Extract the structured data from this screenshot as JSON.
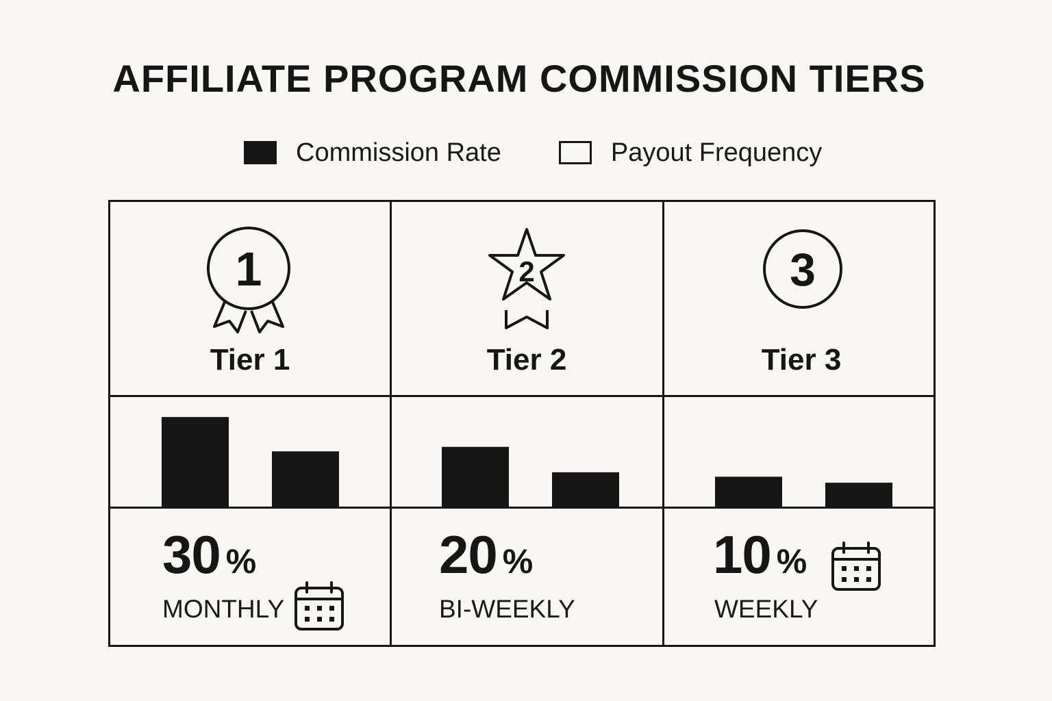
{
  "title": "AFFILIATE PROGRAM COMMISSION TIERS",
  "legend": {
    "filled_label": "Commission Rate",
    "outline_label": "Payout Frequency"
  },
  "colors": {
    "ink": "#161616",
    "background": "#f8f7f4"
  },
  "tiers": [
    {
      "label": "Tier 1",
      "badge": "1",
      "icon": "award-ribbon-icon",
      "rate": "30",
      "rate_unit": "%",
      "frequency": "MONTHLY"
    },
    {
      "label": "Tier 2",
      "badge": "2",
      "icon": "star-ribbon-icon",
      "rate": "20",
      "rate_unit": "%",
      "frequency": "BI-WEEKLY"
    },
    {
      "label": "Tier 3",
      "badge": "3",
      "icon": "circle-badge-icon",
      "rate": "10",
      "rate_unit": "%",
      "frequency": "WEEKLY"
    }
  ],
  "chart_data": {
    "type": "bar",
    "categories": [
      "Tier 1",
      "Tier 2",
      "Tier 3"
    ],
    "series": [
      {
        "name": "Commission Rate",
        "values": [
          30,
          20,
          10
        ]
      },
      {
        "name": "Payout Frequency",
        "values": [
          18.5,
          11.5,
          8
        ]
      }
    ],
    "ylim": [
      0,
      36
    ],
    "grid": false,
    "legend": "top-center"
  }
}
